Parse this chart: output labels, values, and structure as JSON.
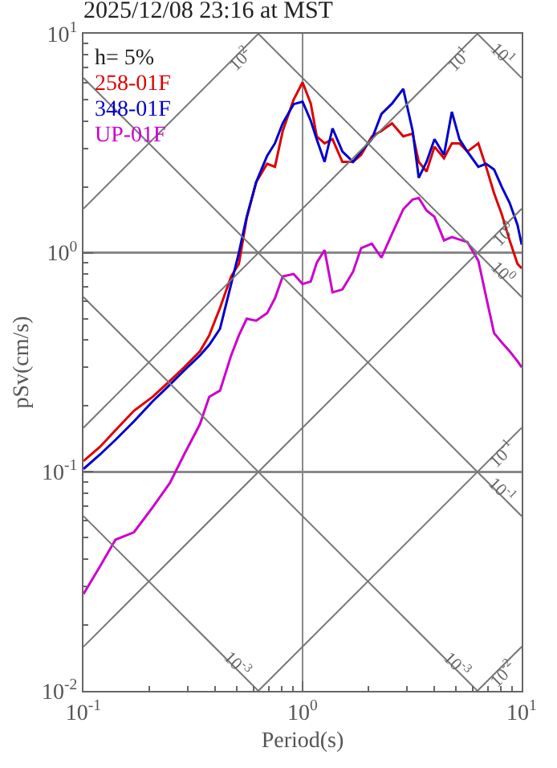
{
  "chart_data": {
    "type": "line",
    "title": "2025/12/08 23:16 at MST",
    "xlabel": "Period(s)",
    "ylabel": "pSv(cm/s)",
    "legend_title": "h= 5%",
    "legend": "top left",
    "log": "xy",
    "grid": true,
    "xlim": [
      0.1,
      10
    ],
    "ylim": [
      0.01,
      10
    ],
    "xticks": [
      {
        "value": 0.1,
        "label": "10$^{-1}$"
      },
      {
        "value": 1,
        "label": "10$^{0}$"
      },
      {
        "value": 10,
        "label": "10$^{1}$"
      }
    ],
    "yticks": [
      {
        "value": 0.01,
        "label": "10$^{-2}$"
      },
      {
        "value": 0.1,
        "label": "10$^{-1}$"
      },
      {
        "value": 1,
        "label": "10$^{0}$"
      },
      {
        "value": 10,
        "label": "10$^{1}$"
      }
    ],
    "x": [
      0.1,
      0.119,
      0.14,
      0.17,
      0.207,
      0.248,
      0.288,
      0.34,
      0.375,
      0.42,
      0.472,
      0.512,
      0.556,
      0.614,
      0.689,
      0.748,
      0.812,
      0.91,
      1.0,
      1.09,
      1.16,
      1.26,
      1.37,
      1.52,
      1.7,
      1.85,
      2.07,
      2.29,
      2.56,
      2.88,
      3.18,
      3.39,
      3.68,
      4.0,
      4.42,
      4.8,
      5.2,
      5.65,
      6.34,
      6.88,
      7.48,
      8.11,
      8.81,
      9.57,
      10
    ],
    "series": [
      {
        "name": "258-01F",
        "color": "#dd0000",
        "values": [
          0.112,
          0.13,
          0.155,
          0.19,
          0.22,
          0.26,
          0.3,
          0.355,
          0.42,
          0.56,
          0.78,
          0.89,
          1.44,
          2.1,
          2.55,
          2.47,
          3.6,
          5.0,
          6.0,
          4.8,
          3.4,
          3.16,
          3.3,
          2.6,
          2.6,
          2.8,
          3.4,
          3.6,
          3.9,
          3.4,
          3.5,
          2.6,
          2.35,
          3.05,
          2.7,
          3.16,
          3.16,
          2.9,
          3.16,
          2.47,
          1.87,
          1.5,
          1.14,
          0.89,
          0.85
        ]
      },
      {
        "name": "348-01F",
        "color": "#0000cc",
        "values": [
          0.103,
          0.12,
          0.14,
          0.17,
          0.21,
          0.25,
          0.29,
          0.34,
          0.38,
          0.45,
          0.72,
          1.0,
          1.46,
          2.1,
          2.77,
          3.16,
          3.9,
          4.77,
          4.9,
          4.0,
          3.3,
          2.6,
          3.7,
          2.9,
          2.6,
          2.9,
          3.3,
          4.3,
          4.8,
          5.6,
          3.6,
          2.2,
          2.6,
          3.3,
          2.8,
          4.4,
          3.3,
          2.9,
          2.47,
          2.55,
          2.4,
          2.0,
          1.69,
          1.34,
          1.09
        ]
      },
      {
        "name": "UP-01F",
        "color": "#cc00cc",
        "values": [
          0.0277,
          0.037,
          0.049,
          0.053,
          0.069,
          0.089,
          0.12,
          0.165,
          0.22,
          0.235,
          0.34,
          0.42,
          0.5,
          0.49,
          0.53,
          0.62,
          0.78,
          0.8,
          0.72,
          0.74,
          0.9,
          1.03,
          0.66,
          0.68,
          0.82,
          1.05,
          1.1,
          0.95,
          1.22,
          1.58,
          1.75,
          1.78,
          1.56,
          1.46,
          1.14,
          1.18,
          1.15,
          1.12,
          0.92,
          0.63,
          0.43,
          0.39,
          0.355,
          0.32,
          0.3
        ]
      },
      {
        "color": "#777777",
        "x": [
          0.1,
          0.628
        ],
        "values": [
          1.59,
          10
        ]
      },
      {
        "color": "#777777",
        "x": [
          0.1,
          6.28
        ],
        "values": [
          0.159,
          10
        ]
      },
      {
        "color": "#777777",
        "x": [
          0.1,
          10
        ],
        "values": [
          0.0159,
          1.59
        ]
      },
      {
        "color": "#777777",
        "x": [
          0.628,
          10
        ],
        "values": [
          0.01,
          0.159
        ]
      },
      {
        "color": "#777777",
        "x": [
          6.28,
          10
        ],
        "values": [
          0.01,
          0.0159
        ]
      },
      {
        "color": "#777777",
        "x": [
          6.28,
          10
        ],
        "values": [
          10,
          6.28
        ]
      },
      {
        "color": "#777777",
        "x": [
          0.628,
          10
        ],
        "values": [
          10,
          0.628
        ]
      },
      {
        "color": "#777777",
        "x": [
          0.1,
          10
        ],
        "values": [
          6.28,
          0.0628
        ]
      },
      {
        "color": "#777777",
        "x": [
          0.1,
          6.28
        ],
        "values": [
          0.628,
          0.01
        ]
      },
      {
        "color": "#777777",
        "x": [
          0.1,
          0.628
        ],
        "values": [
          0.0628,
          0.01
        ]
      }
    ],
    "annotations": [
      {
        "text": "10$^{2}$",
        "x": 0.628,
        "y": 10
      },
      {
        "text": "10$^{1}$",
        "x": 6.28,
        "y": 10
      },
      {
        "text": "10$^{0}$",
        "x": 10,
        "y": 1.59
      },
      {
        "text": "10$^{-1}$",
        "x": 10,
        "y": 0.159
      },
      {
        "text": "10$^{-2}$",
        "x": 10,
        "y": 0.0159
      },
      {
        "text": "10$^{1}$",
        "x": 10,
        "y": 6.28
      },
      {
        "text": "10$^{0}$",
        "x": 10,
        "y": 0.628
      },
      {
        "text": "10$^{-1}$",
        "x": 10,
        "y": 0.0628
      },
      {
        "text": "10$^{-3}$",
        "x": 6.28,
        "y": 0.01
      },
      {
        "text": "10$^{-3}$",
        "x": 0.628,
        "y": 0.01
      }
    ]
  }
}
